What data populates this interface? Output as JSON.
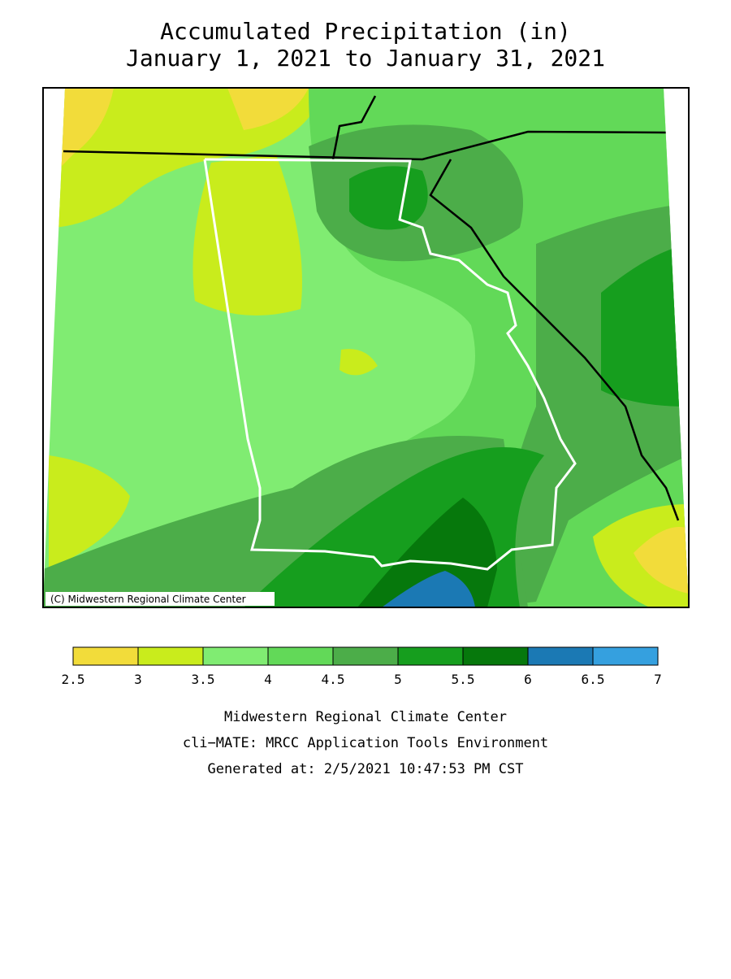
{
  "title": "Accumulated Precipitation (in)",
  "subtitle": "January 1, 2021 to January 31, 2021",
  "map": {
    "copyright": "(C) Midwestern Regional Climate Center"
  },
  "legend": {
    "bins": [
      2.5,
      3,
      3.5,
      4,
      4.5,
      5,
      5.5,
      6,
      6.5,
      7
    ],
    "colors": [
      "#f2dc3a",
      "#c9ec1c",
      "#80ec72",
      "#62d958",
      "#4cad49",
      "#169e1e",
      "#06780c",
      "#1b79b4",
      "#35a0df"
    ]
  },
  "footer": [
    "Midwestern Regional Climate Center",
    "cli−MATE: MRCC Application Tools Environment",
    "Generated at: 2/5/2021 10:47:53 PM CST"
  ]
}
